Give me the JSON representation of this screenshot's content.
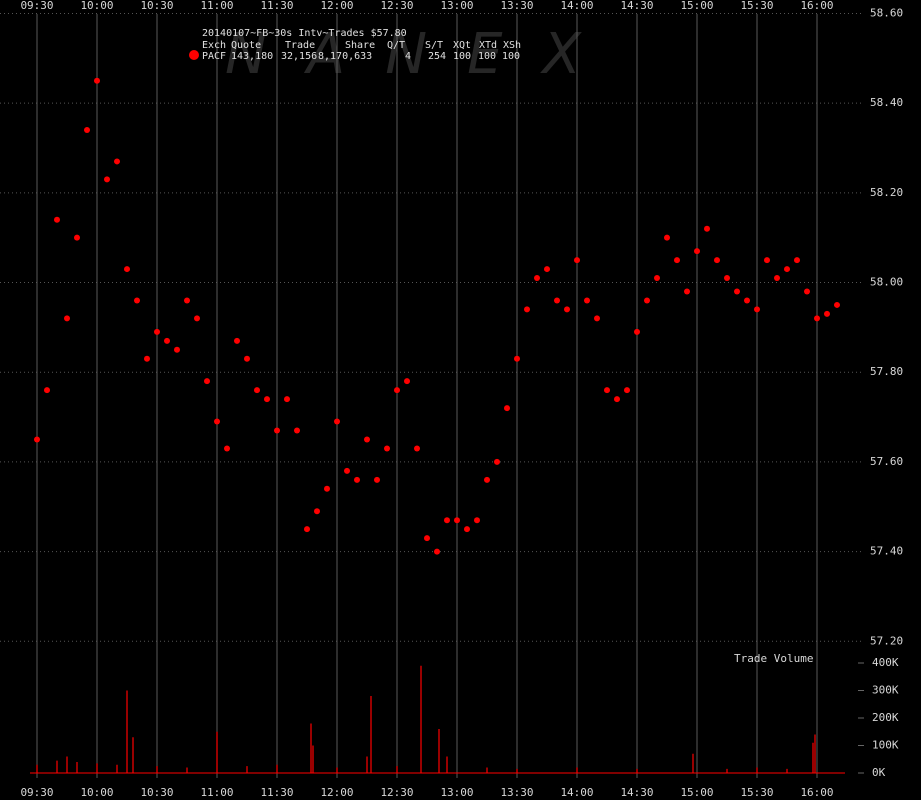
{
  "chart_data": [
    {
      "type": "scatter",
      "title": "20140107~FB~30s Intv~Trades $57.80",
      "watermark": "NANEX",
      "quote_table": {
        "columns": [
          "Exch",
          "Quote",
          "Trade",
          "Share",
          "Q/T",
          "S/T",
          "XQt",
          "XTd",
          "XSh"
        ],
        "rows": [
          [
            "PACF",
            "143,180",
            "32,156",
            "8,170,633",
            "4",
            "254",
            "100",
            "100",
            "100"
          ]
        ]
      },
      "xlim": [
        "09:12",
        "16:21"
      ],
      "xticks": [
        "09:30",
        "10:00",
        "10:30",
        "11:00",
        "11:30",
        "12:00",
        "12:30",
        "13:00",
        "13:30",
        "14:00",
        "14:30",
        "15:00",
        "15:30",
        "16:00"
      ],
      "ylim": [
        57.185,
        58.63
      ],
      "yticks": [
        {
          "value": 57.2,
          "label": "57.20"
        },
        {
          "value": 57.4,
          "label": "57.40"
        },
        {
          "value": 57.6,
          "label": "57.60"
        },
        {
          "value": 57.8,
          "label": "57.80"
        },
        {
          "value": 58.0,
          "label": "58.00"
        },
        {
          "value": 58.2,
          "label": "58.20"
        },
        {
          "value": 58.4,
          "label": "58.40"
        },
        {
          "value": 58.6,
          "label": "58.60"
        }
      ],
      "grid": true,
      "x": [
        "09:30",
        "09:35",
        "09:40",
        "09:45",
        "09:50",
        "09:55",
        "10:00",
        "10:05",
        "10:10",
        "10:15",
        "10:20",
        "10:25",
        "10:30",
        "10:35",
        "10:40",
        "10:45",
        "10:50",
        "10:55",
        "11:00",
        "11:05",
        "11:10",
        "11:15",
        "11:20",
        "11:25",
        "11:30",
        "11:35",
        "11:40",
        "11:45",
        "11:50",
        "11:55",
        "12:00",
        "12:05",
        "12:10",
        "12:15",
        "12:20",
        "12:25",
        "12:30",
        "12:35",
        "12:40",
        "12:45",
        "12:50",
        "12:55",
        "13:00",
        "13:05",
        "13:10",
        "13:15",
        "13:20",
        "13:25",
        "13:30",
        "13:35",
        "13:40",
        "13:45",
        "13:50",
        "13:55",
        "14:00",
        "14:05",
        "14:10",
        "14:15",
        "14:20",
        "14:25",
        "14:30",
        "14:35",
        "14:40",
        "14:45",
        "14:50",
        "14:55",
        "15:00",
        "15:05",
        "15:10",
        "15:15",
        "15:20",
        "15:25",
        "15:30",
        "15:35",
        "15:40",
        "15:45",
        "15:50",
        "15:55",
        "16:00",
        "16:05",
        "16:10"
      ],
      "series": [
        {
          "name": "PACF",
          "color": "#ff0000",
          "values": [
            57.65,
            57.76,
            58.14,
            57.92,
            58.1,
            58.34,
            58.45,
            58.23,
            58.27,
            58.03,
            57.96,
            57.83,
            57.89,
            57.87,
            57.85,
            57.96,
            57.92,
            57.78,
            57.69,
            57.63,
            57.87,
            57.83,
            57.76,
            57.74,
            57.67,
            57.74,
            57.67,
            57.45,
            57.49,
            57.54,
            57.69,
            57.58,
            57.56,
            57.65,
            57.56,
            57.63,
            57.76,
            57.78,
            57.63,
            57.43,
            57.4,
            57.47,
            57.47,
            57.45,
            57.47,
            57.56,
            57.6,
            57.72,
            57.83,
            57.94,
            58.01,
            58.03,
            57.96,
            57.94,
            58.05,
            57.96,
            57.92,
            57.76,
            57.74,
            57.76,
            57.89,
            57.96,
            58.01,
            58.1,
            58.05,
            57.98,
            58.07,
            58.12,
            58.05,
            58.01,
            57.98,
            57.96,
            57.94,
            58.05,
            58.01,
            58.03,
            58.05,
            57.98,
            57.92,
            57.93,
            57.95
          ]
        }
      ]
    },
    {
      "type": "bar",
      "title": "Trade Volume",
      "xlim": [
        "09:12",
        "16:21"
      ],
      "ylim": [
        0,
        450000
      ],
      "yticks": [
        {
          "value": 0,
          "label": "0K"
        },
        {
          "value": 100000,
          "label": "100K"
        },
        {
          "value": 200000,
          "label": "200K"
        },
        {
          "value": 300000,
          "label": "300K"
        },
        {
          "value": 400000,
          "label": "400K"
        }
      ],
      "color": "#ff0000",
      "x": [
        "09:30",
        "09:40",
        "09:45",
        "09:50",
        "10:00",
        "10:10",
        "10:15",
        "10:18",
        "10:30",
        "10:45",
        "11:00",
        "11:15",
        "11:30",
        "11:47",
        "11:48",
        "12:00",
        "12:15",
        "12:17",
        "12:30",
        "12:42",
        "12:51",
        "12:55",
        "13:15",
        "13:30",
        "14:00",
        "14:30",
        "14:58",
        "15:15",
        "15:30",
        "15:45",
        "15:58",
        "15:59"
      ],
      "values": [
        30000,
        45000,
        60000,
        40000,
        35000,
        30000,
        300000,
        130000,
        25000,
        20000,
        150000,
        25000,
        30000,
        180000,
        100000,
        20000,
        60000,
        280000,
        25000,
        390000,
        160000,
        60000,
        20000,
        15000,
        20000,
        15000,
        70000,
        15000,
        20000,
        15000,
        110000,
        140000
      ]
    }
  ]
}
